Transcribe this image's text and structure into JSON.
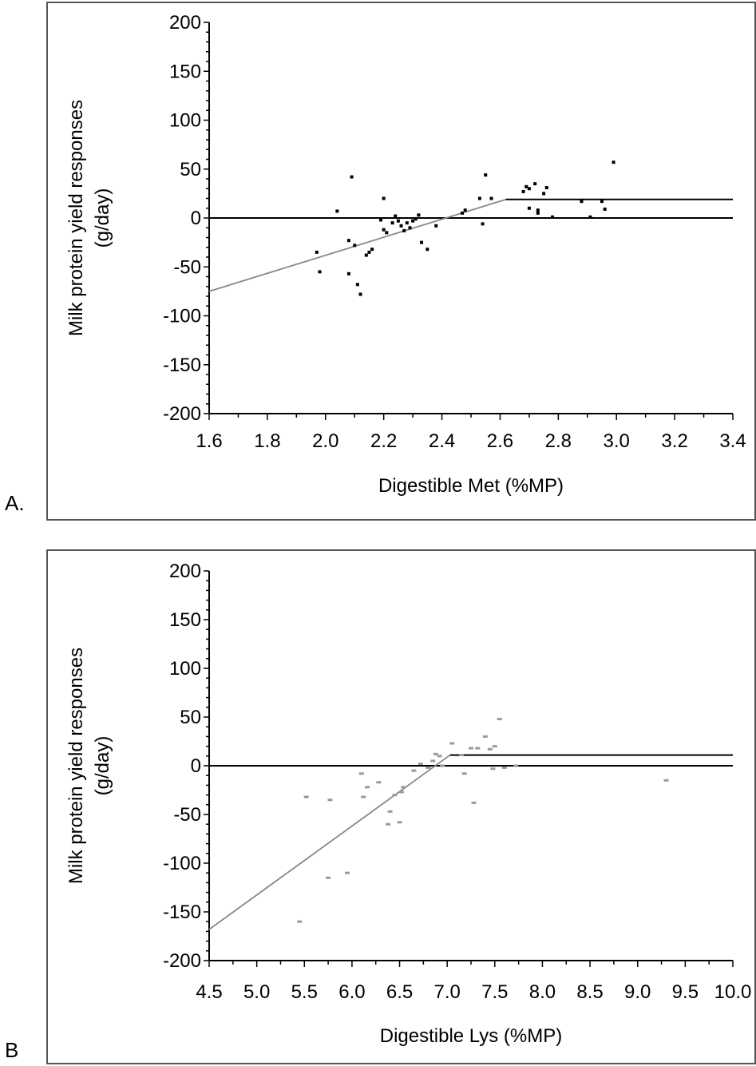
{
  "panels": [
    {
      "letter": "A."
    },
    {
      "letter": "B"
    }
  ],
  "chart_data": [
    {
      "type": "scatter",
      "xlabel": "Digestible Met (%MP)",
      "ylabel": [
        "Milk protein yield responses",
        "(g/day)"
      ],
      "xlim": [
        1.6,
        3.4
      ],
      "ylim": [
        -200,
        200
      ],
      "x_ticks": [
        "1.6",
        "1.8",
        "2.0",
        "2.2",
        "2.4",
        "2.6",
        "2.8",
        "3.0",
        "3.2",
        "3.4"
      ],
      "y_ticks": [
        "200",
        "150",
        "100",
        "50",
        "0",
        "-50",
        "-100",
        "-150",
        "-200"
      ],
      "point_color": "#000000",
      "reference_line": {
        "y": 0
      },
      "fit_line": {
        "points": [
          [
            1.6,
            -75
          ],
          [
            2.62,
            19
          ],
          [
            3.4,
            19
          ]
        ]
      },
      "points": [
        [
          1.97,
          -35
        ],
        [
          1.98,
          -55
        ],
        [
          2.04,
          7
        ],
        [
          2.08,
          -23
        ],
        [
          2.09,
          42
        ],
        [
          2.08,
          -57
        ],
        [
          2.1,
          -28
        ],
        [
          2.11,
          -68
        ],
        [
          2.12,
          -78
        ],
        [
          2.14,
          -38
        ],
        [
          2.15,
          -35
        ],
        [
          2.16,
          -32
        ],
        [
          2.19,
          -2
        ],
        [
          2.2,
          20
        ],
        [
          2.2,
          -12
        ],
        [
          2.21,
          -15
        ],
        [
          2.23,
          -5
        ],
        [
          2.24,
          2
        ],
        [
          2.25,
          -3
        ],
        [
          2.26,
          -8
        ],
        [
          2.27,
          -13
        ],
        [
          2.28,
          -5
        ],
        [
          2.29,
          -10
        ],
        [
          2.3,
          -3
        ],
        [
          2.31,
          -1
        ],
        [
          2.32,
          3
        ],
        [
          2.33,
          -25
        ],
        [
          2.35,
          -32
        ],
        [
          2.38,
          -8
        ],
        [
          2.47,
          5
        ],
        [
          2.48,
          8
        ],
        [
          2.53,
          20
        ],
        [
          2.54,
          -6
        ],
        [
          2.55,
          44
        ],
        [
          2.57,
          20
        ],
        [
          2.68,
          27
        ],
        [
          2.69,
          32
        ],
        [
          2.7,
          30
        ],
        [
          2.7,
          10
        ],
        [
          2.72,
          35
        ],
        [
          2.73,
          8
        ],
        [
          2.73,
          5
        ],
        [
          2.75,
          25
        ],
        [
          2.76,
          31
        ],
        [
          2.78,
          1
        ],
        [
          2.88,
          17
        ],
        [
          2.91,
          1
        ],
        [
          2.95,
          17
        ],
        [
          2.96,
          9
        ],
        [
          2.99,
          57
        ]
      ]
    },
    {
      "type": "scatter",
      "xlabel": "Digestible Lys (%MP)",
      "ylabel": [
        "Milk protein yield responses",
        "(g/day)"
      ],
      "xlim": [
        4.5,
        10.0
      ],
      "ylim": [
        -200,
        200
      ],
      "x_ticks": [
        "4.5",
        "5.0",
        "5.5",
        "6.0",
        "6.5",
        "7.0",
        "7.5",
        "8.0",
        "8.5",
        "9.0",
        "9.5",
        "10.0"
      ],
      "y_ticks": [
        "200",
        "150",
        "100",
        "50",
        "0",
        "-50",
        "-100",
        "-150",
        "-200"
      ],
      "point_color": "#9a9a9a",
      "reference_line": {
        "y": 0
      },
      "fit_line": {
        "points": [
          [
            4.5,
            -168
          ],
          [
            7.03,
            11
          ],
          [
            10.0,
            11
          ]
        ]
      },
      "points": [
        [
          5.45,
          -160
        ],
        [
          5.52,
          -32
        ],
        [
          5.75,
          -115
        ],
        [
          5.77,
          -35
        ],
        [
          5.95,
          -110
        ],
        [
          6.1,
          -8
        ],
        [
          6.12,
          -32
        ],
        [
          6.16,
          -22
        ],
        [
          6.28,
          -17
        ],
        [
          6.38,
          -60
        ],
        [
          6.4,
          -47
        ],
        [
          6.45,
          -30
        ],
        [
          6.5,
          -58
        ],
        [
          6.52,
          -27
        ],
        [
          6.54,
          -22
        ],
        [
          6.65,
          -5
        ],
        [
          6.72,
          2
        ],
        [
          6.8,
          -2
        ],
        [
          6.85,
          5
        ],
        [
          6.88,
          12
        ],
        [
          6.92,
          10
        ],
        [
          6.95,
          0
        ],
        [
          7.05,
          23
        ],
        [
          7.15,
          11
        ],
        [
          7.18,
          -8
        ],
        [
          7.25,
          18
        ],
        [
          7.28,
          -38
        ],
        [
          7.32,
          18
        ],
        [
          7.4,
          30
        ],
        [
          7.45,
          17
        ],
        [
          7.48,
          -3
        ],
        [
          7.5,
          20
        ],
        [
          7.55,
          48
        ],
        [
          7.6,
          -2
        ],
        [
          7.72,
          0
        ],
        [
          9.3,
          -15
        ]
      ]
    }
  ]
}
